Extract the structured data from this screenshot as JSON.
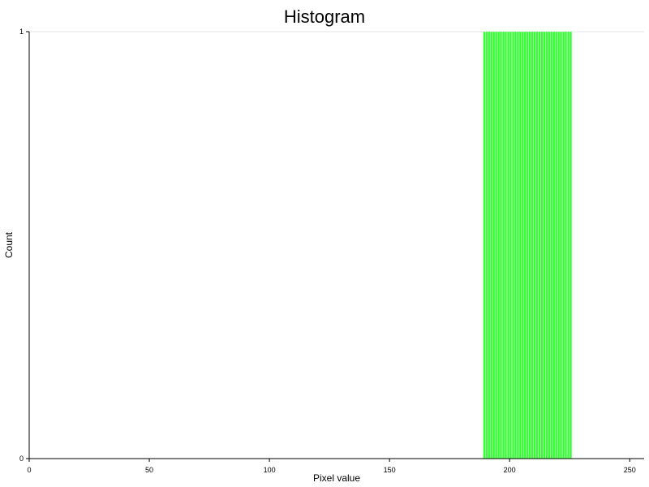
{
  "chart_data": {
    "type": "bar",
    "title": "Histogram",
    "xlabel": "Pixel value",
    "ylabel": "Count",
    "xlim": [
      0,
      256
    ],
    "ylim": [
      0,
      1
    ],
    "x_ticks": [
      0,
      50,
      100,
      150,
      200,
      250
    ],
    "y_ticks": [
      0,
      1
    ],
    "grid": false,
    "bar_color": "#33ff33",
    "bins": [
      189,
      190,
      191,
      192,
      193,
      194,
      195,
      196,
      197,
      198,
      199,
      200,
      201,
      202,
      203,
      204,
      205,
      206,
      207,
      208,
      209,
      210,
      211,
      212,
      213,
      214,
      215,
      216,
      217,
      218,
      219,
      220,
      221,
      222,
      223,
      224,
      225
    ],
    "values": [
      1,
      1,
      1,
      1,
      1,
      1,
      1,
      1,
      1,
      1,
      1,
      1,
      1,
      1,
      1,
      1,
      1,
      1,
      1,
      1,
      1,
      1,
      1,
      1,
      1,
      1,
      1,
      1,
      1,
      1,
      1,
      1,
      1,
      1,
      1,
      1,
      1
    ]
  }
}
